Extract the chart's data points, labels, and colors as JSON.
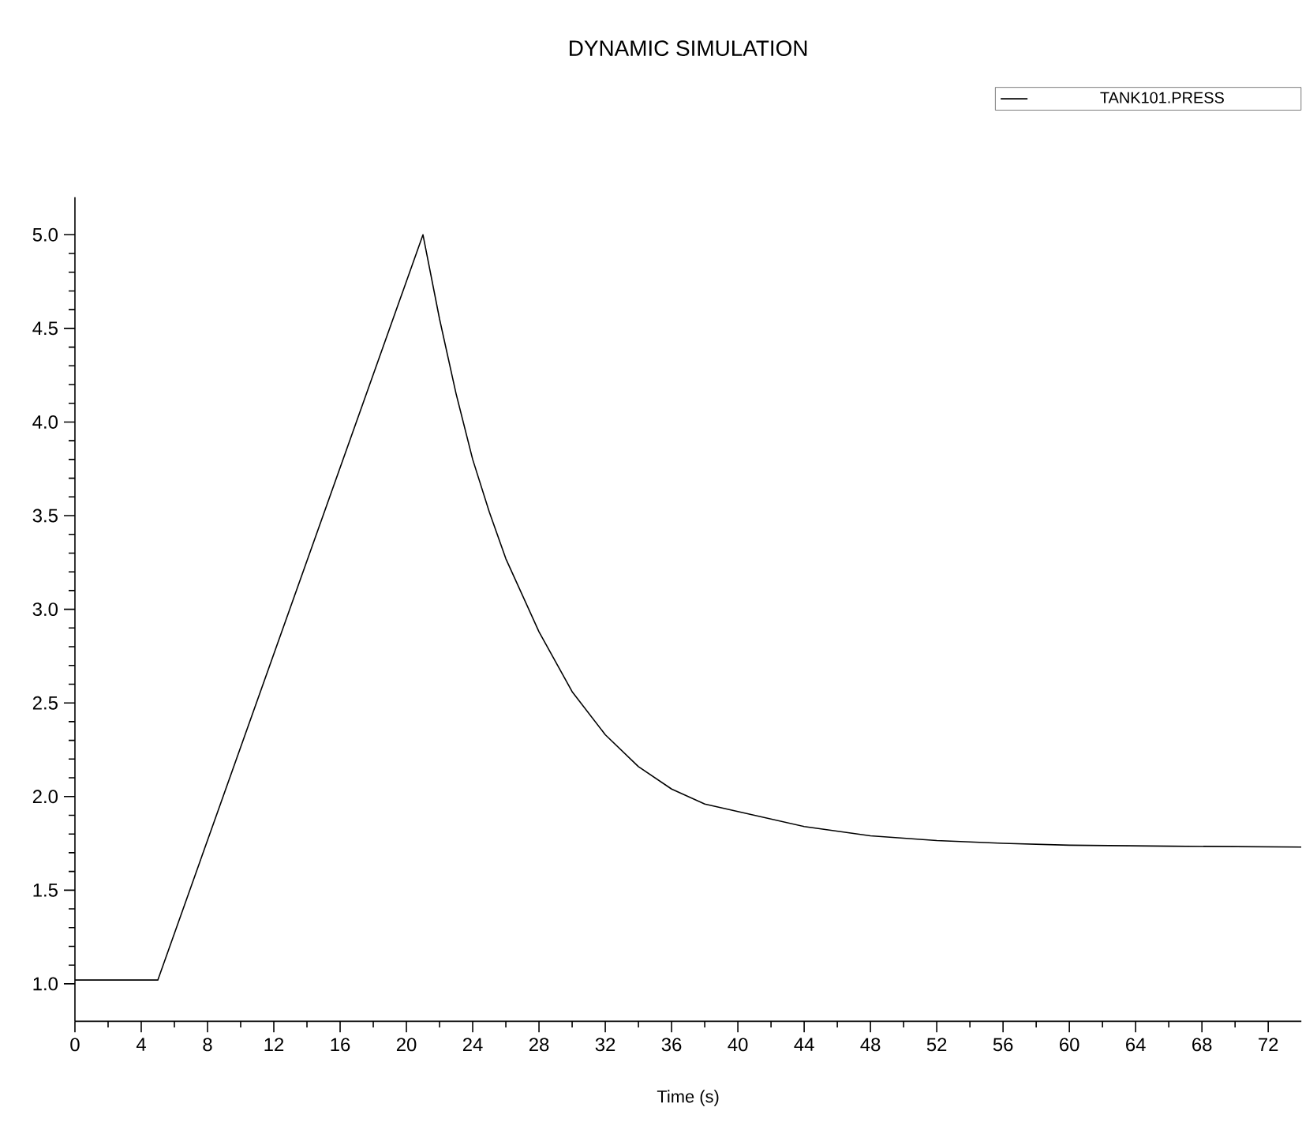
{
  "chart_data": {
    "type": "line",
    "title": "DYNAMIC SIMULATION",
    "xlabel": "Time (s)",
    "x": [
      0,
      5,
      21,
      22,
      23,
      24,
      25,
      26,
      28,
      30,
      32,
      34,
      36,
      38,
      40,
      44,
      48,
      52,
      56,
      60,
      66,
      74
    ],
    "series": [
      {
        "name": "TANK101.PRESS",
        "color": "#000000",
        "values": [
          1.02,
          1.02,
          5.0,
          4.55,
          4.15,
          3.8,
          3.52,
          3.27,
          2.88,
          2.56,
          2.33,
          2.16,
          2.04,
          1.96,
          1.92,
          1.84,
          1.79,
          1.765,
          1.75,
          1.74,
          1.735,
          1.73
        ]
      }
    ],
    "xlim": [
      0,
      74
    ],
    "ylim": [
      0.8,
      5.2
    ],
    "xticks": [
      0,
      4,
      8,
      12,
      16,
      20,
      24,
      28,
      32,
      36,
      40,
      44,
      48,
      52,
      56,
      60,
      64,
      68,
      72
    ],
    "yticks": [
      {
        "value": 1.0,
        "label": "1.0"
      },
      {
        "value": 1.5,
        "label": "1.5"
      },
      {
        "value": 2.0,
        "label": "2.0"
      },
      {
        "value": 2.5,
        "label": "2.5"
      },
      {
        "value": 3.0,
        "label": "3.0"
      },
      {
        "value": 3.5,
        "label": "3.5"
      },
      {
        "value": 4.0,
        "label": "4.0"
      },
      {
        "value": 4.5,
        "label": "4.5"
      },
      {
        "value": 5.0,
        "label": "5.0"
      }
    ],
    "legend": "top right",
    "grid": false
  }
}
